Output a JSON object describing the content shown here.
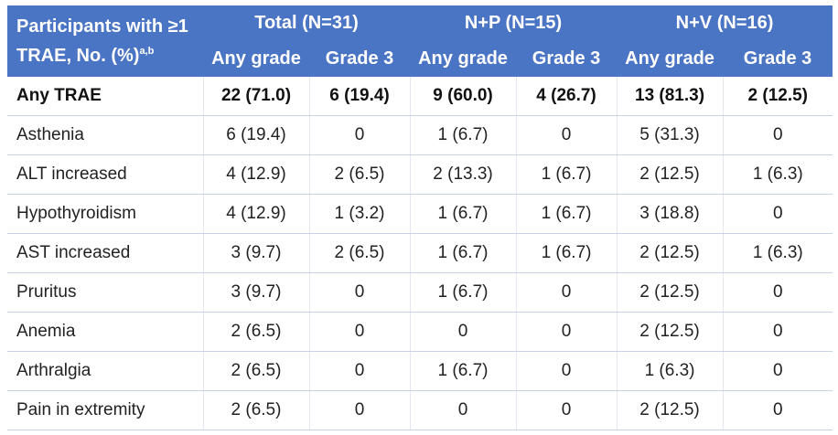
{
  "header": {
    "corner_line1": "Participants with ≥1",
    "corner_line2": "TRAE, No. (%)",
    "corner_sup": "a,b",
    "groups": [
      "Total (N=31)",
      "N+P (N=15)",
      "N+V (N=16)"
    ],
    "subheaders": [
      "Any grade",
      "Grade 3",
      "Any grade",
      "Grade 3",
      "Any grade",
      "Grade 3"
    ]
  },
  "rows": [
    {
      "label": "Any TRAE",
      "cells": [
        "22 (71.0)",
        "6 (19.4)",
        "9 (60.0)",
        "4 (26.7)",
        "13 (81.3)",
        "2 (12.5)"
      ]
    },
    {
      "label": "Asthenia",
      "cells": [
        "6 (19.4)",
        "0",
        "1 (6.7)",
        "0",
        "5 (31.3)",
        "0"
      ]
    },
    {
      "label": "ALT increased",
      "cells": [
        "4 (12.9)",
        "2 (6.5)",
        "2 (13.3)",
        "1 (6.7)",
        "2 (12.5)",
        "1 (6.3)"
      ]
    },
    {
      "label": "Hypothyroidism",
      "cells": [
        "4 (12.9)",
        "1 (3.2)",
        "1 (6.7)",
        "1 (6.7)",
        "3 (18.8)",
        "0"
      ]
    },
    {
      "label": "AST increased",
      "cells": [
        "3 (9.7)",
        "2 (6.5)",
        "1 (6.7)",
        "1 (6.7)",
        "2 (12.5)",
        "1 (6.3)"
      ]
    },
    {
      "label": "Pruritus",
      "cells": [
        "3 (9.7)",
        "0",
        "1 (6.7)",
        "0",
        "2 (12.5)",
        "0"
      ]
    },
    {
      "label": "Anemia",
      "cells": [
        "2 (6.5)",
        "0",
        "0",
        "0",
        "2 (12.5)",
        "0"
      ]
    },
    {
      "label": "Arthralgia",
      "cells": [
        "2 (6.5)",
        "0",
        "1 (6.7)",
        "0",
        "1 (6.3)",
        "0"
      ]
    },
    {
      "label": "Pain in extremity",
      "cells": [
        "2 (6.5)",
        "0",
        "0",
        "0",
        "2 (12.5)",
        "0"
      ]
    }
  ],
  "colors": {
    "header_bg": "#4a74c4",
    "header_text": "#ffffff",
    "row_border": "#c8d2e6"
  }
}
